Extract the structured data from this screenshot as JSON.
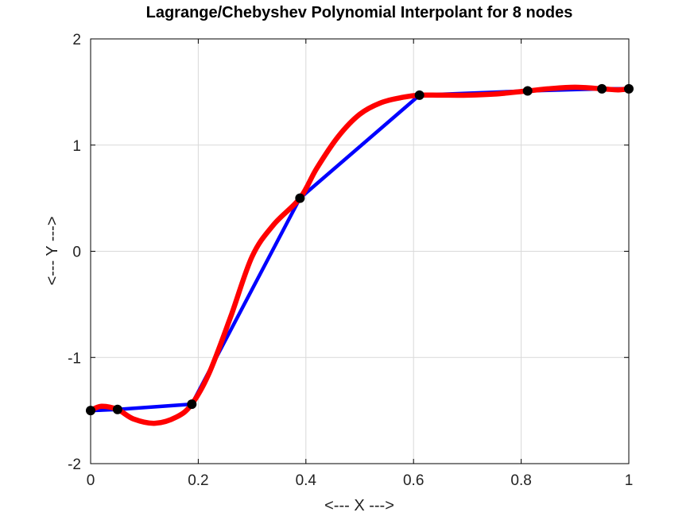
{
  "chart_data": {
    "type": "line",
    "title": "Lagrange/Chebyshev Polynomial Interpolant for 8 nodes",
    "xlabel": "<--- X --->",
    "ylabel": "<--- Y --->",
    "xlim": [
      0,
      1
    ],
    "ylim": [
      -2,
      2
    ],
    "xticks": [
      0,
      0.2,
      0.4,
      0.6,
      0.8,
      1
    ],
    "yticks": [
      -2,
      -1,
      0,
      1,
      2
    ],
    "xtick_labels": [
      "0",
      "0.2",
      "0.4",
      "0.6",
      "0.8",
      "1"
    ],
    "ytick_labels": [
      "-2",
      "-1",
      "0",
      "1",
      "2"
    ],
    "grid": true,
    "nodes": {
      "x": [
        0,
        0.05,
        0.188,
        0.389,
        0.611,
        0.812,
        0.95,
        1.0
      ],
      "y": [
        -1.5,
        -1.49,
        -1.44,
        0.5,
        1.47,
        1.51,
        1.53,
        1.53
      ]
    },
    "series": [
      {
        "color": "#0000ff",
        "x": [
          0,
          0.05,
          0.188,
          0.389,
          0.611,
          0.812,
          0.95,
          1.0
        ],
        "y": [
          -1.5,
          -1.49,
          -1.44,
          0.5,
          1.47,
          1.51,
          1.53,
          1.53
        ]
      },
      {
        "color": "#ff0000",
        "x": [
          0,
          0.02,
          0.05,
          0.08,
          0.12,
          0.16,
          0.188,
          0.22,
          0.26,
          0.3,
          0.34,
          0.389,
          0.42,
          0.46,
          0.5,
          0.54,
          0.58,
          0.611,
          0.65,
          0.7,
          0.75,
          0.812,
          0.85,
          0.9,
          0.95,
          0.98,
          1.0
        ],
        "y": [
          -1.5,
          -1.46,
          -1.49,
          -1.58,
          -1.62,
          -1.56,
          -1.44,
          -1.15,
          -0.62,
          -0.05,
          0.25,
          0.5,
          0.78,
          1.08,
          1.29,
          1.4,
          1.45,
          1.47,
          1.47,
          1.47,
          1.48,
          1.51,
          1.53,
          1.545,
          1.53,
          1.52,
          1.53
        ]
      }
    ],
    "node_color": "#000000"
  }
}
